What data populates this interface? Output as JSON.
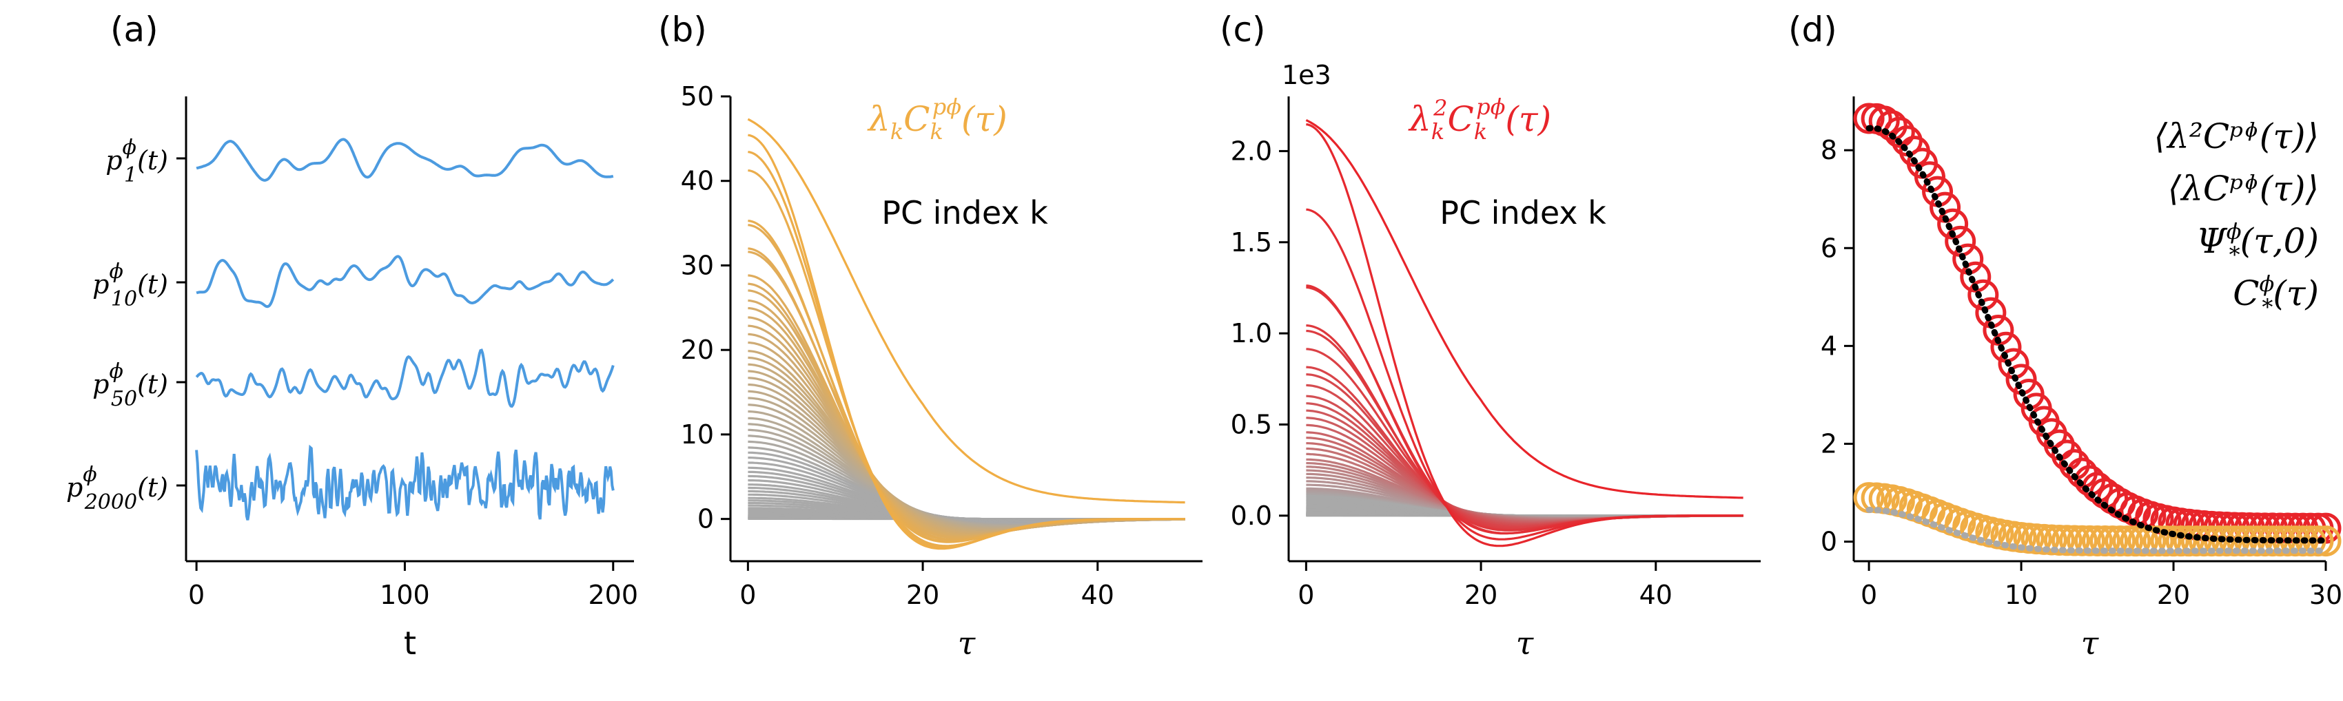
{
  "figure": {
    "panel_labels": [
      "(a)",
      "(b)",
      "(c)",
      "(d)"
    ]
  },
  "chart_data": [
    {
      "type": "line",
      "panel": "(a)",
      "xlabel": "t",
      "xlim": [
        -5,
        210
      ],
      "xticks": [
        0,
        100,
        200
      ],
      "series_color": "#4c9be0",
      "series": [
        {
          "name": "p1",
          "label_base": "p",
          "label_sup": "ϕ",
          "label_sub": "1",
          "label_arg": "(t)",
          "amplitude": 0.55,
          "smooth": 9
        },
        {
          "name": "p10",
          "label_base": "p",
          "label_sup": "ϕ",
          "label_sub": "10",
          "label_arg": "(t)",
          "amplitude": 0.65,
          "smooth": 5
        },
        {
          "name": "p50",
          "label_base": "p",
          "label_sup": "ϕ",
          "label_sub": "50",
          "label_arg": "(t)",
          "amplitude": 0.8,
          "smooth": 3
        },
        {
          "name": "p2000",
          "label_base": "p",
          "label_sup": "ϕ",
          "label_sub": "2000",
          "label_arg": "(t)",
          "amplitude": 0.95,
          "smooth": 1
        }
      ]
    },
    {
      "type": "line",
      "panel": "(b)",
      "xlabel": "τ",
      "xlim": [
        -2,
        52
      ],
      "ylim": [
        -5,
        50
      ],
      "xticks": [
        0,
        20,
        40
      ],
      "yticks": [
        0,
        10,
        20,
        30,
        40,
        50
      ],
      "title_math": "λkCkpϕ(τ)",
      "title_color": "#f0ad44",
      "legend_title": "PC index k",
      "gradient": [
        "#f0ad44",
        "#a9a9a9"
      ],
      "n_curves": 60,
      "peak_values": [
        47.3,
        45.7,
        43.7,
        41.5,
        35.5,
        35.0,
        32.2,
        31.8,
        29.0,
        28.0,
        27.2,
        26.0,
        25.1,
        24.0,
        23.0,
        22.0,
        21.0,
        20.0,
        19.2,
        18.4,
        17.6,
        16.8,
        16.0,
        15.2,
        14.4,
        13.6,
        12.8,
        12.0,
        11.3,
        10.6,
        9.9,
        9.2,
        8.5,
        7.9,
        7.3,
        6.7,
        6.1,
        5.6,
        5.1,
        4.6,
        4.1,
        3.7,
        3.3,
        2.9,
        2.5,
        2.2,
        1.9,
        1.6,
        1.3,
        1.1,
        0.9,
        0.7,
        0.5,
        0.4,
        0.3,
        0.2,
        0.15,
        0.1,
        0.05,
        0.02
      ],
      "tail_top": 2.6
    },
    {
      "type": "line",
      "panel": "(c)",
      "xlabel": "τ",
      "xlim": [
        -2,
        52
      ],
      "ylim": [
        -0.25,
        2.3
      ],
      "xticks": [
        0,
        20,
        40
      ],
      "yticks": [
        0.0,
        0.5,
        1.0,
        1.5,
        2.0
      ],
      "ytick_labels": [
        "0.0",
        "0.5",
        "1.0",
        "1.5",
        "2.0"
      ],
      "offset_label": "1e3",
      "title_math": "λk2Ckpϕ(τ)",
      "title_color": "#e8242a",
      "legend_title": "PC index k",
      "gradient": [
        "#e8242a",
        "#a9a9a9"
      ],
      "n_curves": 60,
      "peak_values": [
        2.17,
        2.16,
        1.69,
        1.27,
        1.26,
        1.05,
        1.02,
        0.92,
        0.82,
        0.78,
        0.72,
        0.66,
        0.62,
        0.58,
        0.54,
        0.5,
        0.46,
        0.43,
        0.4,
        0.37,
        0.34,
        0.31,
        0.29,
        0.27,
        0.25,
        0.23,
        0.21,
        0.19,
        0.17,
        0.15,
        0.14,
        0.13,
        0.12,
        0.11,
        0.1,
        0.09,
        0.08,
        0.07,
        0.06,
        0.05,
        0.045,
        0.04,
        0.035,
        0.03,
        0.025,
        0.02,
        0.018,
        0.016,
        0.014,
        0.012,
        0.01,
        0.008,
        0.006,
        0.005,
        0.004,
        0.003,
        0.002,
        0.0015,
        0.001,
        0.0005
      ],
      "tail_top": 0.13
    },
    {
      "type": "scatter",
      "panel": "(d)",
      "xlabel": "τ",
      "xlim": [
        -1,
        30
      ],
      "ylim": [
        -0.4,
        9.1
      ],
      "xticks": [
        0,
        10,
        20,
        30
      ],
      "yticks": [
        0,
        2,
        4,
        6,
        8
      ],
      "legend": [
        {
          "label": "⟨λ²C^pϕ(τ)⟩",
          "text": "⟨λ²Cᵖᶲ(τ)⟩",
          "color": "#e8242a"
        },
        {
          "label": "⟨λC^pϕ(τ)⟩",
          "text": "⟨λCᵖᶲ(τ)⟩",
          "color": "#f0ad44"
        },
        {
          "label": "Ψ*ϕ(τ,0)",
          "text": "Ψ",
          "color": "#000000"
        },
        {
          "label": "C*ϕ(τ)",
          "text": "C",
          "color": "#a9a9a9"
        }
      ],
      "series": [
        {
          "name": "lambda2_C",
          "color": "#e8242a",
          "marker": "open-circle",
          "peak": 8.65,
          "width": 7.0
        },
        {
          "name": "lambda_C",
          "color": "#f0ad44",
          "marker": "open-circle",
          "peak": 0.9,
          "width": 4.5
        },
        {
          "name": "Psi",
          "color": "#000000",
          "marker": "dotted-line",
          "peak": 8.7,
          "width": 7.0
        },
        {
          "name": "C_star",
          "color": "#a9a9a9",
          "marker": "dotted-line",
          "peak": 0.85,
          "width": 4.5
        }
      ]
    }
  ]
}
